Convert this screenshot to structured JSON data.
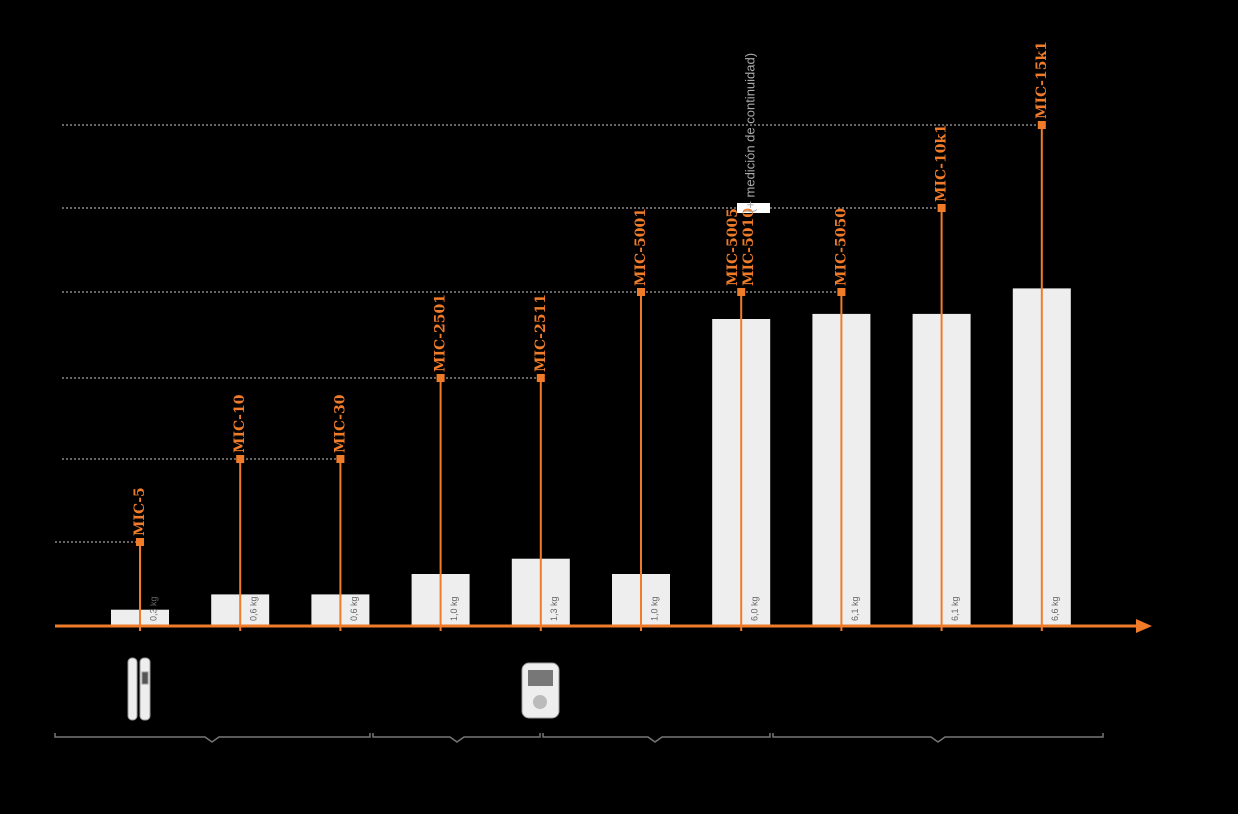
{
  "chart_data": {
    "type": "bar",
    "categories": [
      "MIC-5",
      "MIC-10",
      "MIC-30",
      "MIC-2501",
      "MIC-2511",
      "MIC-5001",
      [
        "MIC-5005",
        "MIC-5010"
      ],
      "MIC-5050",
      "MIC-10k1",
      "MIC-15k1"
    ],
    "values": [
      0.3,
      0.6,
      0.6,
      1.0,
      1.3,
      1.0,
      6.0,
      6.1,
      6.1,
      6.6
    ],
    "value_labels": [
      "0,3 kg",
      "0,6 kg",
      "0,6 kg",
      "1,0 kg",
      "1,3 kg",
      "1,0 kg",
      "6,0 kg",
      "6,1 kg",
      "6,1 kg",
      "6,6 kg"
    ],
    "annotation": "(+ medición de continuidad)",
    "color": "#f07c2a",
    "bar_color": "#eeeeee"
  }
}
